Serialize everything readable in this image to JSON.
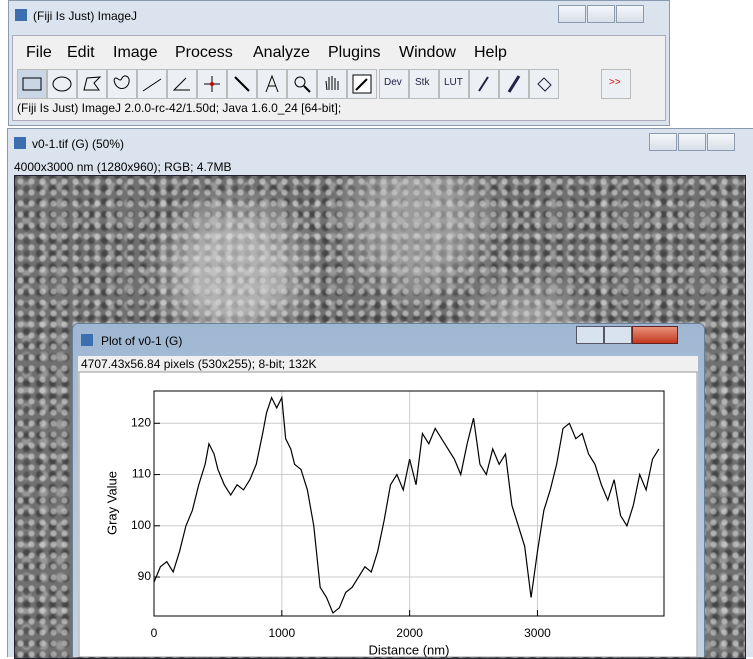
{
  "imagej_window": {
    "title": "(Fiji Is Just) ImageJ",
    "menu": [
      "File",
      "Edit",
      "Image",
      "Process",
      "Analyze",
      "Plugins",
      "Window",
      "Help"
    ],
    "toolbar": [
      "Dev",
      "Stk",
      "LUT",
      ">>"
    ],
    "status": "(Fiji Is Just) ImageJ 2.0.0-rc-42/1.50d; Java 1.6.0_24 [64-bit];"
  },
  "image_window": {
    "title": "v0-1.tif (G) (50%)",
    "info": "4000x3000 nm (1280x960); RGB; 4.7MB"
  },
  "plot_window": {
    "title": "Plot of v0-1 (G)",
    "info": "4707.43x56.84 pixels (530x255); 8-bit; 132K"
  },
  "chart_data": {
    "type": "line",
    "x_label": "Distance (nm)",
    "y_label": "Gray Value",
    "x": [
      0,
      50,
      100,
      150,
      200,
      250,
      300,
      350,
      400,
      430,
      470,
      500,
      550,
      600,
      650,
      700,
      750,
      800,
      850,
      880,
      920,
      960,
      1000,
      1030,
      1070,
      1100,
      1150,
      1200,
      1250,
      1300,
      1350,
      1400,
      1450,
      1500,
      1550,
      1600,
      1650,
      1700,
      1750,
      1800,
      1850,
      1900,
      1950,
      2000,
      2050,
      2100,
      2150,
      2200,
      2250,
      2300,
      2350,
      2400,
      2450,
      2500,
      2550,
      2600,
      2650,
      2700,
      2750,
      2800,
      2850,
      2900,
      2950,
      3000,
      3050,
      3100,
      3150,
      3200,
      3250,
      3300,
      3350,
      3400,
      3450,
      3500,
      3550,
      3600,
      3650,
      3700,
      3750,
      3800,
      3850,
      3900,
      3950
    ],
    "series": [
      {
        "color": "#000000",
        "values": [
          89,
          92,
          93,
          91,
          95,
          100,
          103,
          108,
          112,
          116,
          114,
          111,
          108,
          106,
          108,
          107,
          109,
          112,
          118,
          122,
          125,
          123,
          125,
          117,
          115,
          112,
          111,
          107,
          100,
          88,
          86,
          83,
          84,
          87,
          88,
          90,
          92,
          91,
          95,
          101,
          108,
          110,
          107,
          113,
          108,
          118,
          116,
          119,
          117,
          115,
          113,
          110,
          116,
          121,
          112,
          110,
          115,
          112,
          114,
          104,
          100,
          96,
          86,
          95,
          103,
          107,
          112,
          119,
          120,
          117,
          118,
          114,
          112,
          108,
          105,
          109,
          102,
          100,
          104,
          110,
          107,
          113,
          115
        ]
      }
    ],
    "xlim": [
      0,
      3990
    ],
    "ylim": [
      82.4,
      126.3
    ],
    "xticks": [
      0,
      1000,
      2000,
      3000
    ],
    "yticks": [
      90,
      100,
      110,
      120
    ],
    "grid": true
  }
}
